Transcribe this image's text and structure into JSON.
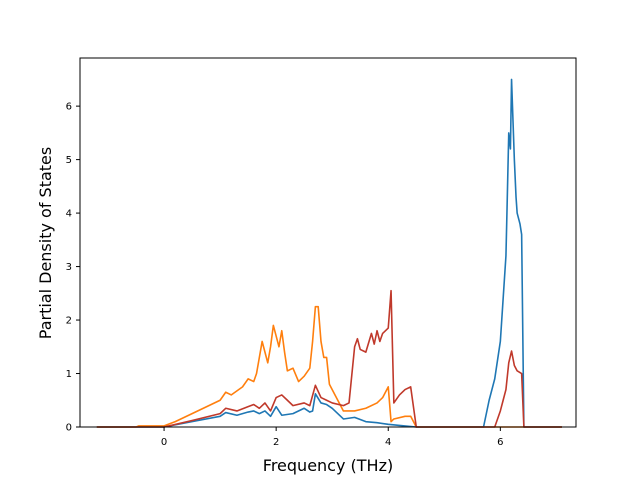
{
  "chart_data": {
    "type": "line",
    "title": "",
    "xlabel": "Frequency (THz)",
    "ylabel": "Partial Density of States",
    "xlim": [
      -1.5,
      7.35
    ],
    "ylim": [
      0,
      6.9
    ],
    "xticks": [
      0,
      2,
      4,
      6
    ],
    "xtick_labels": [
      "0",
      "2",
      "4",
      "6"
    ],
    "yticks": [
      0,
      1,
      2,
      3,
      4,
      5,
      6
    ],
    "ytick_labels": [
      "0",
      "1",
      "2",
      "3",
      "4",
      "5",
      "6"
    ],
    "grid": false,
    "legend": "none",
    "series": [
      {
        "color": "#1f77b4",
        "points": [
          [
            -1.2,
            0.0
          ],
          [
            -0.5,
            0.0
          ],
          [
            0.0,
            0.0
          ],
          [
            0.5,
            0.1
          ],
          [
            1.0,
            0.2
          ],
          [
            1.1,
            0.27
          ],
          [
            1.3,
            0.22
          ],
          [
            1.5,
            0.28
          ],
          [
            1.6,
            0.3
          ],
          [
            1.7,
            0.25
          ],
          [
            1.8,
            0.3
          ],
          [
            1.9,
            0.2
          ],
          [
            2.0,
            0.38
          ],
          [
            2.1,
            0.22
          ],
          [
            2.3,
            0.25
          ],
          [
            2.5,
            0.35
          ],
          [
            2.6,
            0.28
          ],
          [
            2.65,
            0.3
          ],
          [
            2.7,
            0.62
          ],
          [
            2.8,
            0.45
          ],
          [
            2.9,
            0.42
          ],
          [
            3.0,
            0.35
          ],
          [
            3.2,
            0.15
          ],
          [
            3.4,
            0.18
          ],
          [
            3.6,
            0.1
          ],
          [
            3.8,
            0.08
          ],
          [
            4.0,
            0.05
          ],
          [
            4.2,
            0.03
          ],
          [
            4.5,
            0.0
          ],
          [
            5.7,
            0.0
          ],
          [
            5.8,
            0.5
          ],
          [
            5.9,
            0.9
          ],
          [
            6.0,
            1.6
          ],
          [
            6.05,
            2.4
          ],
          [
            6.1,
            3.2
          ],
          [
            6.12,
            4.1
          ],
          [
            6.15,
            5.5
          ],
          [
            6.18,
            5.2
          ],
          [
            6.2,
            6.5
          ],
          [
            6.25,
            5.0
          ],
          [
            6.28,
            4.3
          ],
          [
            6.3,
            4.0
          ],
          [
            6.35,
            3.8
          ],
          [
            6.38,
            3.6
          ],
          [
            6.42,
            0.0
          ],
          [
            7.1,
            0.0
          ]
        ]
      },
      {
        "color": "#ff7f0e",
        "points": [
          [
            -1.2,
            0.0
          ],
          [
            -0.5,
            0.0
          ],
          [
            -0.45,
            0.02
          ],
          [
            0.0,
            0.02
          ],
          [
            0.2,
            0.1
          ],
          [
            0.5,
            0.25
          ],
          [
            1.0,
            0.5
          ],
          [
            1.1,
            0.65
          ],
          [
            1.2,
            0.6
          ],
          [
            1.4,
            0.75
          ],
          [
            1.5,
            0.9
          ],
          [
            1.6,
            0.85
          ],
          [
            1.65,
            1.0
          ],
          [
            1.7,
            1.3
          ],
          [
            1.75,
            1.6
          ],
          [
            1.8,
            1.4
          ],
          [
            1.85,
            1.2
          ],
          [
            1.9,
            1.5
          ],
          [
            1.95,
            1.9
          ],
          [
            2.0,
            1.7
          ],
          [
            2.05,
            1.5
          ],
          [
            2.1,
            1.8
          ],
          [
            2.15,
            1.4
          ],
          [
            2.2,
            1.05
          ],
          [
            2.3,
            1.1
          ],
          [
            2.4,
            0.85
          ],
          [
            2.5,
            0.95
          ],
          [
            2.6,
            1.1
          ],
          [
            2.65,
            1.6
          ],
          [
            2.7,
            2.25
          ],
          [
            2.75,
            2.25
          ],
          [
            2.8,
            1.6
          ],
          [
            2.85,
            1.3
          ],
          [
            2.9,
            1.3
          ],
          [
            2.95,
            0.8
          ],
          [
            3.0,
            0.7
          ],
          [
            3.2,
            0.3
          ],
          [
            3.4,
            0.3
          ],
          [
            3.6,
            0.35
          ],
          [
            3.8,
            0.45
          ],
          [
            3.9,
            0.55
          ],
          [
            4.0,
            0.75
          ],
          [
            4.05,
            0.1
          ],
          [
            4.1,
            0.15
          ],
          [
            4.3,
            0.2
          ],
          [
            4.4,
            0.2
          ],
          [
            4.5,
            0.0
          ],
          [
            7.1,
            0.0
          ]
        ]
      },
      {
        "color": "#c0392b",
        "points": [
          [
            -1.2,
            0.0
          ],
          [
            0.0,
            0.0
          ],
          [
            0.5,
            0.12
          ],
          [
            1.0,
            0.25
          ],
          [
            1.1,
            0.35
          ],
          [
            1.3,
            0.3
          ],
          [
            1.5,
            0.38
          ],
          [
            1.6,
            0.42
          ],
          [
            1.7,
            0.35
          ],
          [
            1.8,
            0.45
          ],
          [
            1.9,
            0.3
          ],
          [
            2.0,
            0.55
          ],
          [
            2.1,
            0.6
          ],
          [
            2.2,
            0.5
          ],
          [
            2.3,
            0.4
          ],
          [
            2.5,
            0.45
          ],
          [
            2.6,
            0.4
          ],
          [
            2.7,
            0.78
          ],
          [
            2.8,
            0.55
          ],
          [
            2.9,
            0.5
          ],
          [
            3.0,
            0.45
          ],
          [
            3.2,
            0.4
          ],
          [
            3.3,
            0.45
          ],
          [
            3.4,
            1.5
          ],
          [
            3.45,
            1.65
          ],
          [
            3.5,
            1.45
          ],
          [
            3.6,
            1.4
          ],
          [
            3.7,
            1.75
          ],
          [
            3.75,
            1.55
          ],
          [
            3.8,
            1.8
          ],
          [
            3.85,
            1.6
          ],
          [
            3.9,
            1.75
          ],
          [
            4.0,
            1.85
          ],
          [
            4.05,
            2.55
          ],
          [
            4.1,
            0.45
          ],
          [
            4.2,
            0.6
          ],
          [
            4.3,
            0.7
          ],
          [
            4.4,
            0.75
          ],
          [
            4.5,
            0.0
          ],
          [
            5.9,
            0.0
          ],
          [
            6.0,
            0.3
          ],
          [
            6.05,
            0.5
          ],
          [
            6.1,
            0.7
          ],
          [
            6.15,
            1.2
          ],
          [
            6.2,
            1.42
          ],
          [
            6.25,
            1.15
          ],
          [
            6.3,
            1.05
          ],
          [
            6.38,
            1.0
          ],
          [
            6.42,
            0.0
          ],
          [
            7.1,
            0.0
          ]
        ]
      }
    ]
  }
}
